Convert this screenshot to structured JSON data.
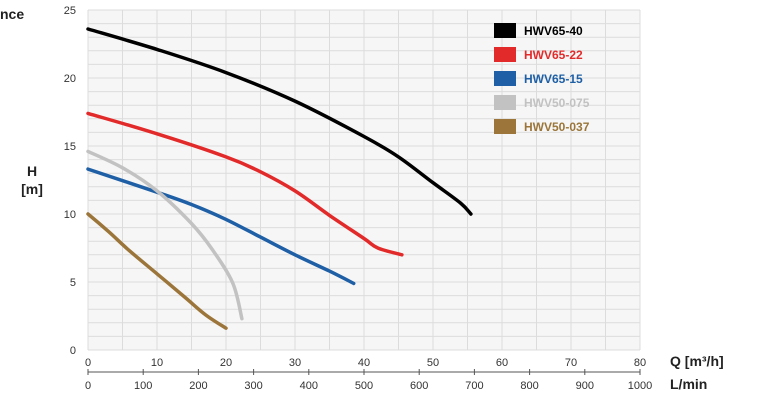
{
  "chart_data": {
    "type": "line",
    "title": "nce",
    "ylabel_top": "H",
    "ylabel_bottom": "[m]",
    "xlabel": "Q [m³/h]",
    "x2label": "L/min",
    "xlim": [
      0,
      80
    ],
    "ylim": [
      0,
      25
    ],
    "x2lim": [
      0,
      1000
    ],
    "xticks": [
      0,
      10,
      20,
      30,
      40,
      50,
      60,
      70,
      80
    ],
    "yticks": [
      0,
      5,
      10,
      15,
      20,
      25
    ],
    "x2ticks": [
      0,
      100,
      200,
      300,
      400,
      500,
      600,
      700,
      800,
      900,
      1000
    ],
    "grid": true,
    "legend_position": "top-right",
    "series": [
      {
        "name": "HWV65-40",
        "color": "#000000",
        "points": [
          [
            0,
            23.6
          ],
          [
            10,
            22.1
          ],
          [
            20,
            20.4
          ],
          [
            30,
            18.3
          ],
          [
            40,
            15.7
          ],
          [
            45,
            14.2
          ],
          [
            50,
            12.3
          ],
          [
            54,
            10.8
          ],
          [
            55.5,
            10.0
          ]
        ]
      },
      {
        "name": "HWV65-22",
        "color": "#e32a2a",
        "points": [
          [
            0,
            17.4
          ],
          [
            10,
            15.9
          ],
          [
            20,
            14.2
          ],
          [
            25,
            13.1
          ],
          [
            30,
            11.7
          ],
          [
            35,
            9.9
          ],
          [
            40,
            8.2
          ],
          [
            42,
            7.5
          ],
          [
            45.5,
            7.0
          ]
        ]
      },
      {
        "name": "HWV65-15",
        "color": "#1e5fa6",
        "points": [
          [
            0,
            13.3
          ],
          [
            10,
            11.6
          ],
          [
            15,
            10.7
          ],
          [
            20,
            9.6
          ],
          [
            25,
            8.3
          ],
          [
            30,
            7.0
          ],
          [
            35,
            5.8
          ],
          [
            38.5,
            4.9
          ]
        ]
      },
      {
        "name": "HWV50-075",
        "color": "#c2c2c2",
        "points": [
          [
            0,
            14.6
          ],
          [
            5,
            13.4
          ],
          [
            10,
            11.7
          ],
          [
            15,
            9.3
          ],
          [
            18,
            7.4
          ],
          [
            21,
            4.9
          ],
          [
            22.3,
            2.3
          ]
        ]
      },
      {
        "name": "HWV50-037",
        "color": "#9b7539",
        "points": [
          [
            0,
            10.0
          ],
          [
            3,
            8.7
          ],
          [
            6,
            7.3
          ],
          [
            10,
            5.6
          ],
          [
            14,
            3.9
          ],
          [
            17,
            2.6
          ],
          [
            20,
            1.6
          ]
        ]
      }
    ]
  }
}
